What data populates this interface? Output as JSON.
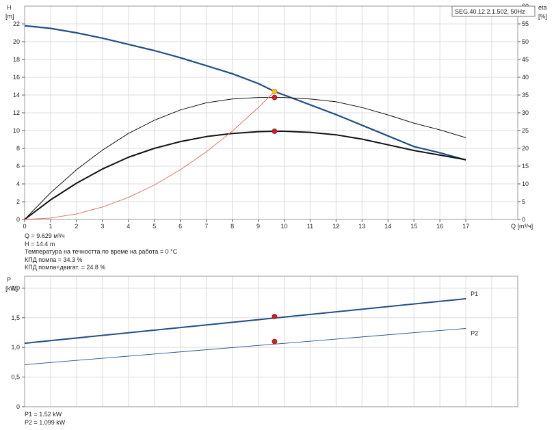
{
  "chart_data": [
    {
      "type": "line",
      "model_label": "SEG.40.12.2.1.502, 50Hz",
      "x_axis": {
        "label": "Q [m³/ч]",
        "min": 0,
        "max": 19,
        "ticks": [
          0,
          1,
          2,
          3,
          4,
          5,
          6,
          7,
          8,
          9,
          10,
          11,
          12,
          13,
          14,
          15,
          16,
          17
        ]
      },
      "y_left": {
        "label_line1": "H",
        "label_line2": "[m]",
        "min": 0,
        "max": 24,
        "ticks": [
          0,
          2,
          4,
          6,
          8,
          10,
          12,
          14,
          16,
          18,
          20,
          22
        ]
      },
      "y_right": {
        "label_line1": "eta",
        "label_line2": "[%]",
        "min": 0,
        "max": 60,
        "ticks": [
          0,
          5,
          10,
          15,
          20,
          25,
          30,
          35,
          40,
          45,
          50,
          55,
          60
        ]
      },
      "grid": true,
      "series": [
        {
          "axis": "left",
          "color": "#1e4f86",
          "width": 2.2,
          "x": [
            0,
            1,
            2,
            3,
            4,
            5,
            6,
            7,
            8,
            9,
            9.629,
            10,
            11,
            12,
            13,
            14,
            15,
            16,
            17
          ],
          "y": [
            21.8,
            21.5,
            21.0,
            20.4,
            19.7,
            19.0,
            18.2,
            17.3,
            16.4,
            15.3,
            14.4,
            14.0,
            12.9,
            11.8,
            10.6,
            9.4,
            8.2,
            7.5,
            6.7
          ]
        },
        {
          "axis": "right",
          "color": "#111111",
          "width": 1.0,
          "x": [
            0,
            1,
            2,
            3,
            4,
            5,
            6,
            7,
            8,
            9,
            9.629,
            10,
            11,
            12,
            13,
            14,
            15,
            16,
            17
          ],
          "y": [
            0,
            7.5,
            14.0,
            19.5,
            24.2,
            27.9,
            30.8,
            32.8,
            33.9,
            34.3,
            34.3,
            34.3,
            33.9,
            33.1,
            31.5,
            29.4,
            27.1,
            25.2,
            23.0
          ]
        },
        {
          "axis": "right",
          "color": "#111111",
          "width": 2.0,
          "x": [
            0,
            1,
            2,
            3,
            4,
            5,
            6,
            7,
            8,
            9,
            9.629,
            10,
            11,
            12,
            13,
            14,
            15,
            16,
            17
          ],
          "y": [
            0,
            5.5,
            10.2,
            14.2,
            17.5,
            20.0,
            21.9,
            23.3,
            24.2,
            24.7,
            24.8,
            24.8,
            24.5,
            23.8,
            22.6,
            21.0,
            19.4,
            18.1,
            16.8
          ]
        },
        {
          "axis": "left",
          "color": "#e06a55",
          "width": 0.9,
          "x": [
            0,
            1,
            2,
            3,
            4,
            5,
            6,
            7,
            8,
            9,
            9.629
          ],
          "y": [
            0,
            0.16,
            0.62,
            1.4,
            2.48,
            3.88,
            5.59,
            7.61,
            9.94,
            12.58,
            14.4
          ]
        }
      ],
      "markers": [
        {
          "axis": "left",
          "x": 9.629,
          "y": 14.4,
          "color": "#f5c518"
        },
        {
          "axis": "right",
          "x": 9.629,
          "y": 34.3,
          "color": "#d62020"
        },
        {
          "axis": "right",
          "x": 9.629,
          "y": 24.8,
          "color": "#d62020"
        }
      ]
    },
    {
      "type": "line",
      "x_axis": {
        "min": 0,
        "max": 19
      },
      "y_left": {
        "label_line1": "P",
        "label_line2": "[kW]",
        "min": 0,
        "max": 2.2,
        "tick_values": [
          0,
          0.5,
          1.0,
          1.5,
          2.0
        ],
        "tick_labels": [
          "0",
          "0,5",
          "1,0",
          "1,5",
          "2,0"
        ]
      },
      "grid": true,
      "series": [
        {
          "name": "P1",
          "color": "#1e4f86",
          "width": 2.0,
          "x": [
            0,
            17
          ],
          "y": [
            1.07,
            1.82
          ]
        },
        {
          "name": "P2",
          "color": "#1e4f86",
          "width": 0.9,
          "x": [
            0,
            17
          ],
          "y": [
            0.71,
            1.32
          ]
        }
      ],
      "markers": [
        {
          "x": 9.629,
          "y": 1.52,
          "color": "#d62020"
        },
        {
          "x": 9.629,
          "y": 1.099,
          "color": "#d62020"
        }
      ]
    }
  ],
  "operating_point": {
    "q": "Q = 9.629 м³/ч",
    "h": "H = 14.4 m",
    "temp": "Температура на течността по време на работа = 0 °C",
    "eff_pump": "КПД помпа = 34.3 %",
    "eff_total": "КПД помпа+двигат. = 24.8 %"
  },
  "power_point": {
    "p1": "P1 = 1.52 kW",
    "p2": "P2 = 1.099 kW"
  }
}
